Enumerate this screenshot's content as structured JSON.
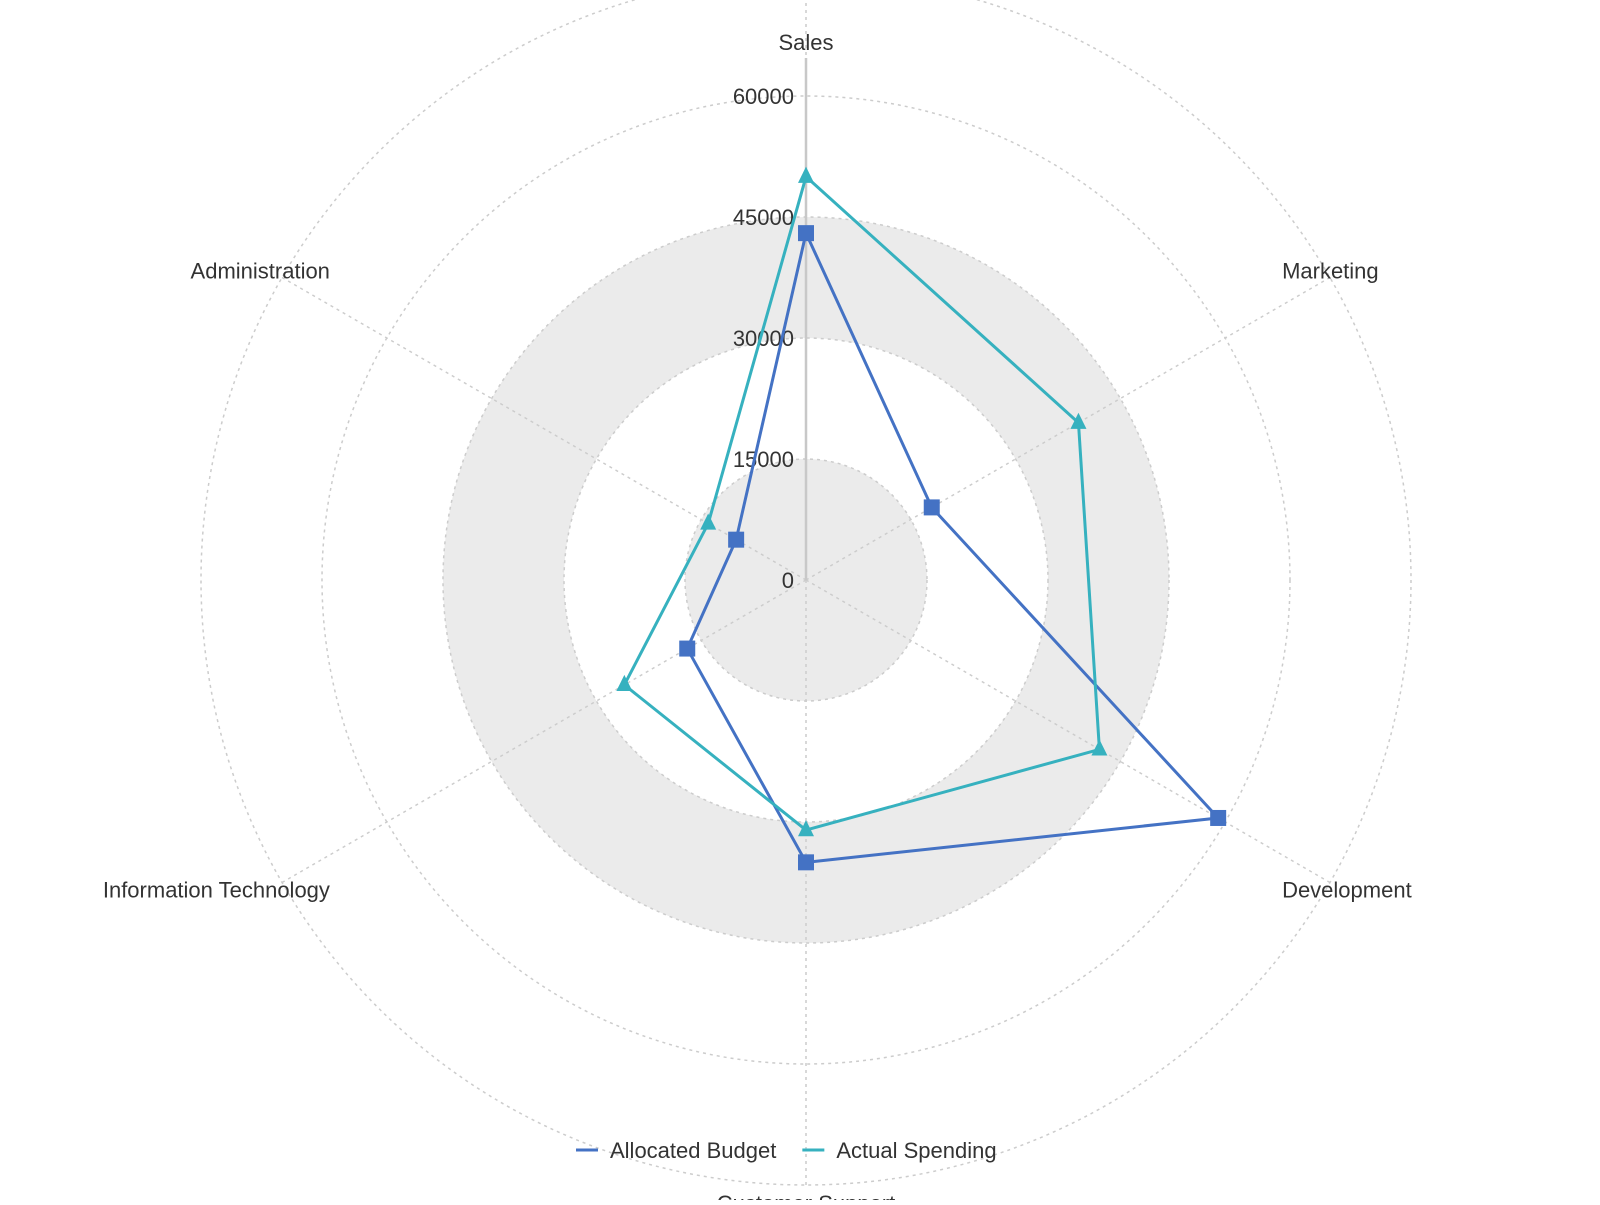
{
  "chart_data": {
    "type": "radar",
    "categories": [
      "Sales",
      "Marketing",
      "Development",
      "Customer Support",
      "Information Technology",
      "Administration"
    ],
    "radial_ticks": [
      0,
      15000,
      30000,
      45000,
      60000
    ],
    "rlim": [
      0,
      60000
    ],
    "grid": true,
    "legend_position": "bottom",
    "series": [
      {
        "name": "Allocated Budget",
        "values": [
          43000,
          18000,
          59000,
          35000,
          17000,
          10000
        ],
        "color": "#4472c4",
        "marker": "square"
      },
      {
        "name": "Actual Spending",
        "values": [
          50000,
          39000,
          42000,
          31000,
          26000,
          14000
        ],
        "color": "#36b1bf",
        "marker": "triangle"
      }
    ],
    "colors": {
      "grid": "#cccccc",
      "band": "#ebebeb",
      "axis": "#c8c8c8",
      "text": "#333333"
    }
  }
}
